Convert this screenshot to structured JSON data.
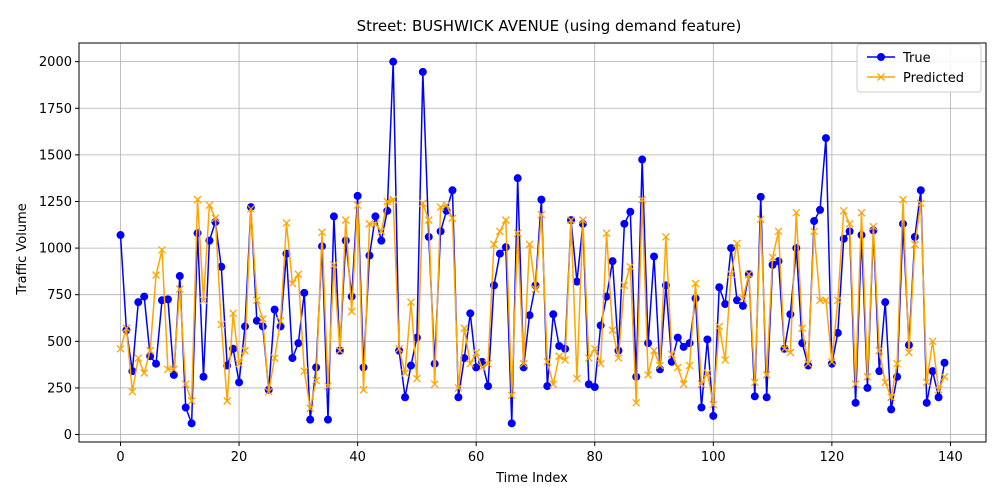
{
  "chart_data": {
    "type": "line",
    "title": "Street: BUSHWICK AVENUE (using demand feature)",
    "xlabel": "Time Index",
    "ylabel": "Traffic Volume",
    "xlim": [
      -7,
      146
    ],
    "ylim": [
      -40,
      2100
    ],
    "xticks": [
      0,
      20,
      40,
      60,
      80,
      100,
      120,
      140
    ],
    "yticks": [
      0,
      250,
      500,
      750,
      1000,
      1250,
      1500,
      1750,
      2000
    ],
    "grid": true,
    "legend_position": "top-right",
    "series": [
      {
        "name": "True",
        "color": "#0000ff",
        "marker": "circle",
        "values": [
          1070,
          560,
          340,
          710,
          740,
          420,
          380,
          720,
          725,
          320,
          850,
          145,
          60,
          1080,
          310,
          1040,
          1140,
          900,
          370,
          460,
          280,
          580,
          1220,
          610,
          580,
          240,
          670,
          580,
          970,
          410,
          490,
          760,
          80,
          360,
          1010,
          80,
          1170,
          450,
          1040,
          740,
          1280,
          360,
          960,
          1170,
          1040,
          1200,
          2000,
          450,
          200,
          370,
          520,
          1945,
          1060,
          380,
          1090,
          1200,
          1310,
          200,
          410,
          650,
          360,
          390,
          260,
          800,
          970,
          1005,
          60,
          1375,
          360,
          640,
          800,
          1260,
          260,
          645,
          475,
          460,
          1150,
          820,
          1130,
          270,
          255,
          585,
          740,
          930,
          450,
          1130,
          1195,
          310,
          1475,
          490,
          955,
          350,
          800,
          390,
          520,
          470,
          490,
          730,
          145,
          510,
          100,
          790,
          700,
          1000,
          720,
          690,
          860,
          205,
          1275,
          200,
          910,
          930,
          460,
          645,
          1000,
          490,
          370,
          1145,
          1205,
          1590,
          380,
          545,
          1050,
          1090,
          170,
          1070,
          250,
          1095,
          340,
          710,
          135,
          310,
          1130,
          480,
          1060,
          1310,
          170,
          340,
          200,
          385
        ]
      },
      {
        "name": "Predicted",
        "color": "#ffa500",
        "marker": "x",
        "values": [
          460,
          570,
          230,
          410,
          330,
          450,
          855,
          990,
          350,
          350,
          780,
          270,
          180,
          1260,
          720,
          1230,
          1160,
          590,
          180,
          650,
          380,
          450,
          1210,
          720,
          620,
          230,
          410,
          610,
          1135,
          810,
          860,
          340,
          140,
          290,
          1085,
          260,
          910,
          450,
          1150,
          660,
          1230,
          240,
          1130,
          1130,
          1090,
          1250,
          1260,
          460,
          330,
          710,
          300,
          1240,
          1150,
          270,
          1220,
          1230,
          1160,
          250,
          570,
          380,
          440,
          360,
          380,
          1020,
          1090,
          1150,
          210,
          1080,
          380,
          1020,
          780,
          1180,
          390,
          270,
          420,
          400,
          1150,
          300,
          1150,
          410,
          460,
          380,
          1080,
          560,
          410,
          800,
          900,
          170,
          1260,
          320,
          450,
          370,
          1060,
          430,
          360,
          270,
          370,
          810,
          270,
          330,
          160,
          580,
          400,
          860,
          1025,
          730,
          860,
          280,
          1155,
          320,
          950,
          1090,
          460,
          440,
          1190,
          570,
          380,
          1090,
          720,
          720,
          390,
          720,
          1200,
          1130,
          270,
          1190,
          310,
          1115,
          450,
          280,
          200,
          380,
          1260,
          440,
          1020,
          1240,
          280,
          500,
          240,
          310
        ]
      }
    ]
  }
}
